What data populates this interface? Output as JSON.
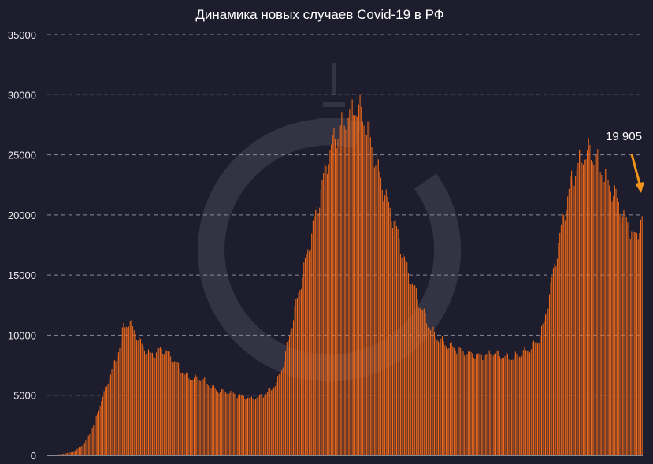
{
  "chart_data": {
    "type": "bar",
    "title": "Динамика новых случаев Covid-19 в РФ",
    "xlabel": "",
    "ylabel": "",
    "ylim": [
      0,
      35000
    ],
    "y_ticks": [
      0,
      5000,
      10000,
      15000,
      20000,
      25000,
      30000,
      35000
    ],
    "grid": "horizontal dashed",
    "bar_color": "#f26a1b",
    "background_color": "#1e1d2d",
    "annotation": {
      "text": "19 905",
      "value": 19905,
      "arrow_color": "#f2961b"
    },
    "profile_knots": [
      [
        0,
        0
      ],
      [
        10,
        100
      ],
      [
        20,
        300
      ],
      [
        28,
        1000
      ],
      [
        35,
        2500
      ],
      [
        40,
        4200
      ],
      [
        44,
        5500
      ],
      [
        48,
        6800
      ],
      [
        52,
        8000
      ],
      [
        56,
        9500
      ],
      [
        58,
        10800
      ],
      [
        62,
        11000
      ],
      [
        66,
        10500
      ],
      [
        70,
        9500
      ],
      [
        74,
        8900
      ],
      [
        78,
        8400
      ],
      [
        82,
        8500
      ],
      [
        86,
        8800
      ],
      [
        90,
        8700
      ],
      [
        95,
        8100
      ],
      [
        100,
        7400
      ],
      [
        105,
        6700
      ],
      [
        110,
        6400
      ],
      [
        115,
        6400
      ],
      [
        120,
        6200
      ],
      [
        125,
        5700
      ],
      [
        130,
        5400
      ],
      [
        135,
        5300
      ],
      [
        140,
        5200
      ],
      [
        145,
        5000
      ],
      [
        150,
        4900
      ],
      [
        155,
        4700
      ],
      [
        160,
        4800
      ],
      [
        165,
        5000
      ],
      [
        170,
        5400
      ],
      [
        175,
        6000
      ],
      [
        180,
        7500
      ],
      [
        185,
        10000
      ],
      [
        190,
        12500
      ],
      [
        195,
        15000
      ],
      [
        200,
        17500
      ],
      [
        205,
        20000
      ],
      [
        210,
        22500
      ],
      [
        215,
        25000
      ],
      [
        220,
        26500
      ],
      [
        225,
        27500
      ],
      [
        230,
        28500
      ],
      [
        235,
        29000
      ],
      [
        240,
        28500
      ],
      [
        245,
        27000
      ],
      [
        250,
        25000
      ],
      [
        255,
        23000
      ],
      [
        260,
        21000
      ],
      [
        265,
        19500
      ],
      [
        270,
        17500
      ],
      [
        275,
        15500
      ],
      [
        280,
        14000
      ],
      [
        285,
        12500
      ],
      [
        290,
        11200
      ],
      [
        295,
        10200
      ],
      [
        300,
        9600
      ],
      [
        305,
        9200
      ],
      [
        310,
        9000
      ],
      [
        315,
        8700
      ],
      [
        320,
        8500
      ],
      [
        325,
        8400
      ],
      [
        330,
        8300
      ],
      [
        335,
        8300
      ],
      [
        340,
        8500
      ],
      [
        345,
        8400
      ],
      [
        350,
        8200
      ],
      [
        355,
        8100
      ],
      [
        360,
        8300
      ],
      [
        365,
        8600
      ],
      [
        370,
        9000
      ],
      [
        375,
        9500
      ],
      [
        380,
        11000
      ],
      [
        385,
        14000
      ],
      [
        390,
        17000
      ],
      [
        395,
        20000
      ],
      [
        400,
        22500
      ],
      [
        405,
        24000
      ],
      [
        410,
        25000
      ],
      [
        415,
        25200
      ],
      [
        420,
        24500
      ],
      [
        425,
        23500
      ],
      [
        430,
        22500
      ],
      [
        435,
        21500
      ],
      [
        440,
        20000
      ],
      [
        445,
        19000
      ],
      [
        450,
        18000
      ],
      [
        455,
        19905
      ]
    ]
  }
}
